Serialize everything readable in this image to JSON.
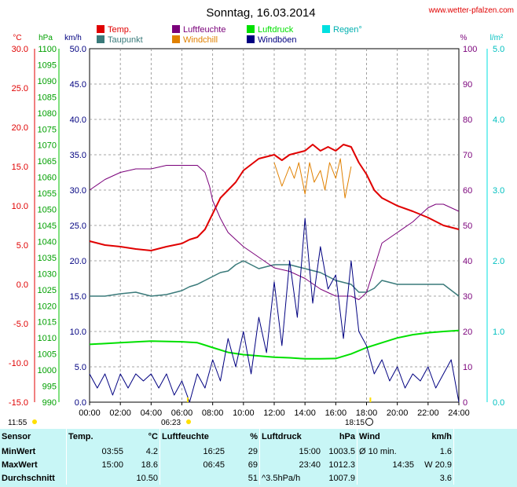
{
  "title": "Sonntag, 16.03.2014",
  "site": "www.wetter-pfalzen.com",
  "colors": {
    "temp": "#e00000",
    "dew": "#3a7a7a",
    "humidity": "#7a007a",
    "windchill": "#e08000",
    "pressure": "#00e000",
    "gust": "#000080",
    "rain": "#00e0e0"
  },
  "legend": {
    "row1": [
      {
        "label": "Temp.",
        "color": "#e00000"
      },
      {
        "label": "Luftfeuchte",
        "color": "#7a007a"
      },
      {
        "label": "Luftdruck",
        "color": "#00e000"
      },
      {
        "label": "Regen°",
        "color": "#00e0e0"
      }
    ],
    "row2": [
      {
        "label": "Taupunkt",
        "color": "#3a7a7a"
      },
      {
        "label": "Windchill",
        "color": "#e08000"
      },
      {
        "label": "Windböen",
        "color": "#000080"
      }
    ]
  },
  "axis_units": {
    "temp": "°C",
    "pressure": "hPa",
    "wind": "km/h",
    "humidity": "%",
    "rain": "l/m²"
  },
  "sun": {
    "sunrise_left": "11:55",
    "sunrise": "06:23",
    "sunset": "18:15"
  },
  "chart_data": {
    "type": "line",
    "x_label_ticks": [
      "00:00",
      "02:00",
      "04:00",
      "06:00",
      "08:00",
      "10:00",
      "12:00",
      "14:00",
      "16:00",
      "18:00",
      "20:00",
      "22:00",
      "24:00"
    ],
    "xlim_hours": [
      0,
      24
    ],
    "axes": {
      "temp": {
        "unit": "°C",
        "ylim": [
          -15,
          30
        ],
        "ticks": [
          "30.0",
          "25.0",
          "20.0",
          "15.0",
          "10.0",
          "5.0",
          "0.0",
          "-5.0",
          "-10.0",
          "-15.0"
        ]
      },
      "pressure": {
        "unit": "hPa",
        "ylim": [
          990,
          1100
        ],
        "ticks": [
          "1100",
          "1095",
          "1090",
          "1085",
          "1080",
          "1075",
          "1070",
          "1065",
          "1060",
          "1055",
          "1050",
          "1045",
          "1040",
          "1035",
          "1030",
          "1025",
          "1020",
          "1015",
          "1010",
          "1005",
          "1000",
          "995",
          "990"
        ]
      },
      "wind": {
        "unit": "km/h",
        "ylim": [
          0,
          50
        ],
        "ticks": [
          "50.0",
          "45.0",
          "40.0",
          "35.0",
          "30.0",
          "25.0",
          "20.0",
          "15.0",
          "10.0",
          "5.0",
          "0.0"
        ]
      },
      "humidity": {
        "unit": "%",
        "ylim": [
          0,
          100
        ],
        "ticks": [
          "100",
          "90",
          "80",
          "70",
          "60",
          "50",
          "40",
          "30",
          "20",
          "10",
          "0"
        ]
      },
      "rain": {
        "unit": "l/m²",
        "ylim": [
          0,
          5
        ],
        "ticks": [
          "5.0",
          "4.0",
          "3.0",
          "2.0",
          "1.0",
          "0.0"
        ]
      }
    },
    "series": [
      {
        "name": "Temp.",
        "axis": "temp",
        "color": "#e00000",
        "x": [
          0,
          1,
          2,
          3,
          4,
          5,
          6,
          6.5,
          7,
          7.5,
          8,
          8.5,
          9,
          9.5,
          10,
          11,
          12,
          12.5,
          13,
          14,
          14.5,
          15,
          15.5,
          16,
          16.5,
          17,
          17.5,
          18,
          18.5,
          19,
          19.5,
          20,
          21,
          22,
          23,
          24
        ],
        "y": [
          5.5,
          5,
          4.8,
          4.5,
          4.3,
          4.8,
          5.2,
          5.7,
          6,
          7,
          9,
          11,
          12,
          13,
          14.5,
          16,
          16.5,
          15.8,
          16.5,
          17,
          17.8,
          17,
          17.5,
          17,
          17.8,
          17.5,
          15.5,
          14,
          12,
          11,
          10.5,
          10,
          9.3,
          8.5,
          7.5,
          7
        ]
      },
      {
        "name": "Taupunkt",
        "axis": "temp",
        "color": "#3a7a7a",
        "x": [
          0,
          1,
          2,
          3,
          4,
          5,
          6,
          6.5,
          7,
          7.5,
          8,
          8.5,
          9,
          9.5,
          10,
          11,
          12,
          13,
          14,
          15,
          16,
          17,
          17.5,
          18,
          18.5,
          19,
          20,
          21,
          22,
          23,
          24
        ],
        "y": [
          -1.5,
          -1.5,
          -1.2,
          -1,
          -1.5,
          -1.3,
          -0.8,
          -0.3,
          0,
          0.5,
          1,
          1.5,
          1.7,
          2.5,
          3,
          2,
          2.5,
          2.5,
          2,
          1.5,
          0.5,
          0,
          -1,
          -1,
          -0.5,
          0.5,
          0,
          0,
          0,
          0,
          -1.5
        ]
      },
      {
        "name": "Luftfeuchte",
        "axis": "humidity",
        "color": "#7a007a",
        "x": [
          0,
          1,
          2,
          3,
          4,
          5,
          6,
          6.5,
          7,
          7.5,
          7.8,
          8,
          8.5,
          9,
          9.5,
          10,
          11,
          12,
          13,
          14,
          15,
          16,
          17,
          17.5,
          18,
          18.5,
          19,
          20,
          21,
          22,
          22.5,
          23,
          24
        ],
        "y": [
          60,
          63,
          65,
          66,
          66,
          67,
          67,
          67,
          67,
          65,
          61,
          57,
          52,
          48,
          46,
          44,
          41,
          38,
          37,
          35,
          32,
          30,
          30,
          29,
          31,
          38,
          45,
          48,
          51,
          55,
          56,
          56,
          54
        ]
      },
      {
        "name": "Windchill",
        "axis": "temp",
        "color": "#e08000",
        "x": [
          12,
          12.5,
          13,
          13.3,
          13.6,
          14,
          14.3,
          14.6,
          15,
          15.3,
          15.6,
          16,
          16.3,
          16.6,
          17
        ],
        "y": [
          15.5,
          12.5,
          15,
          13.5,
          15.5,
          11.5,
          15.5,
          13,
          14.5,
          12,
          15.5,
          13.5,
          16,
          11,
          15
        ]
      },
      {
        "name": "Luftdruck",
        "axis": "pressure",
        "color": "#00e000",
        "x": [
          0,
          2,
          4,
          6,
          7,
          8,
          9,
          10,
          11,
          12,
          13,
          14,
          15,
          16,
          17,
          18,
          19,
          20,
          21,
          22,
          23,
          24
        ],
        "y": [
          1008,
          1008.5,
          1009,
          1008.8,
          1008.5,
          1007,
          1005.5,
          1004.8,
          1004.4,
          1004,
          1003.8,
          1003.5,
          1003.5,
          1003.6,
          1005,
          1007,
          1008.5,
          1010,
          1011,
          1011.6,
          1012,
          1012.3
        ]
      },
      {
        "name": "Windböen",
        "axis": "wind",
        "color": "#000080",
        "x": [
          0,
          0.5,
          1,
          1.5,
          2,
          2.5,
          3,
          3.5,
          4,
          4.5,
          5,
          5.5,
          6,
          6.5,
          7,
          7.5,
          8,
          8.5,
          9,
          9.5,
          10,
          10.5,
          11,
          11.5,
          12,
          12.5,
          13,
          13.5,
          14,
          14.5,
          15,
          15.5,
          16,
          16.5,
          17,
          17.5,
          18,
          18.5,
          19,
          19.5,
          20,
          20.5,
          21,
          21.5,
          22,
          22.5,
          23,
          23.5,
          24
        ],
        "y": [
          4,
          2,
          4,
          1,
          4,
          2,
          4,
          3,
          4,
          2,
          4,
          1,
          3,
          0,
          4,
          2,
          6,
          3,
          9,
          5,
          10,
          4,
          12,
          7,
          17,
          8,
          20,
          12,
          26,
          14,
          22,
          16,
          18,
          9,
          20,
          10,
          8,
          4,
          6,
          3,
          5,
          2,
          4,
          3,
          5,
          2,
          4,
          6,
          0
        ]
      }
    ]
  },
  "stats": {
    "headers": {
      "sensor": "Sensor",
      "temp": "Temp.",
      "temp_unit": "°C",
      "hum": "Luftfeuchte",
      "hum_unit": "%",
      "press": "Luftdruck",
      "press_unit": "hPa",
      "wind": "Wind",
      "wind_unit": "km/h"
    },
    "rows": [
      {
        "label": "MinWert",
        "temp_time": "03:55",
        "temp_val": "4.2",
        "hum_time": "16:25",
        "hum_val": "29",
        "press_time": "15:00",
        "press_val": "1003.5",
        "wind_time": "Ø 10 min.",
        "wind_val": "1.6"
      },
      {
        "label": "MaxWert",
        "temp_time": "15:00",
        "temp_val": "18.6",
        "hum_time": "06:45",
        "hum_val": "69",
        "press_time": "23:40",
        "press_val": "1012.3",
        "wind_time": "14:35",
        "wind_val": "W 20.9"
      },
      {
        "label": "Durchschnitt",
        "temp_time": "",
        "temp_val": "10.50",
        "hum_time": "",
        "hum_val": "51",
        "press_time": "^3.5hPa/h",
        "press_val": "1007.9",
        "wind_time": "",
        "wind_val": "3.6"
      }
    ]
  }
}
